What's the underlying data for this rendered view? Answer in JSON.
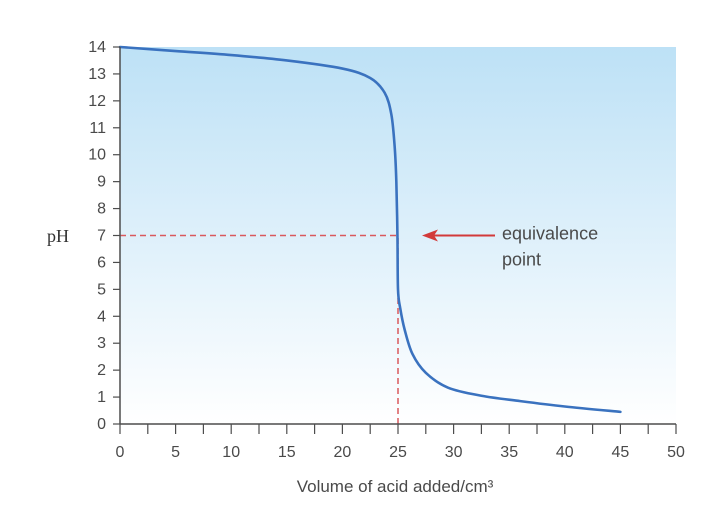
{
  "chart_data": {
    "type": "line",
    "title": "",
    "xlabel": "Volume of acid added/cm³",
    "ylabel": "pH",
    "xlim": [
      0,
      50
    ],
    "ylim": [
      0,
      14
    ],
    "xticks": [
      0,
      5,
      10,
      15,
      20,
      25,
      30,
      35,
      40,
      45,
      50
    ],
    "yticks": [
      0,
      1,
      2,
      3,
      4,
      5,
      6,
      7,
      8,
      9,
      10,
      11,
      12,
      13,
      14
    ],
    "grid": false,
    "legend": "none",
    "series": [
      {
        "color": "#3a72bf",
        "points": [
          [
            0,
            14.0
          ],
          [
            5,
            13.85
          ],
          [
            10,
            13.7
          ],
          [
            15,
            13.5
          ],
          [
            20,
            13.2
          ],
          [
            22.5,
            12.85
          ],
          [
            23.8,
            12.3
          ],
          [
            24.4,
            11.5
          ],
          [
            24.7,
            10.3
          ],
          [
            24.85,
            9.0
          ],
          [
            24.95,
            7.0
          ],
          [
            25.0,
            5.0
          ],
          [
            25.2,
            4.3
          ],
          [
            25.6,
            3.5
          ],
          [
            26.3,
            2.6
          ],
          [
            27.5,
            1.9
          ],
          [
            29.5,
            1.35
          ],
          [
            32.5,
            1.05
          ],
          [
            36,
            0.85
          ],
          [
            40,
            0.65
          ],
          [
            45,
            0.45
          ]
        ]
      }
    ],
    "annotations": [
      {
        "text": [
          "equivalence",
          "point"
        ],
        "x": 25,
        "y": 7,
        "arrow": true,
        "arrow_color": "#d23a3a"
      }
    ],
    "reference_lines": [
      {
        "orientation": "horizontal",
        "y": 7,
        "x_to": 25,
        "style": "dashed",
        "color": "#d9595d"
      },
      {
        "orientation": "vertical",
        "x": 25,
        "y_to": 7,
        "style": "dashed",
        "color": "#d9595d"
      }
    ],
    "colors": {
      "background_top": "#bde1f6",
      "background_bottom": "#ffffff",
      "axis": "#4d4d4d"
    }
  }
}
